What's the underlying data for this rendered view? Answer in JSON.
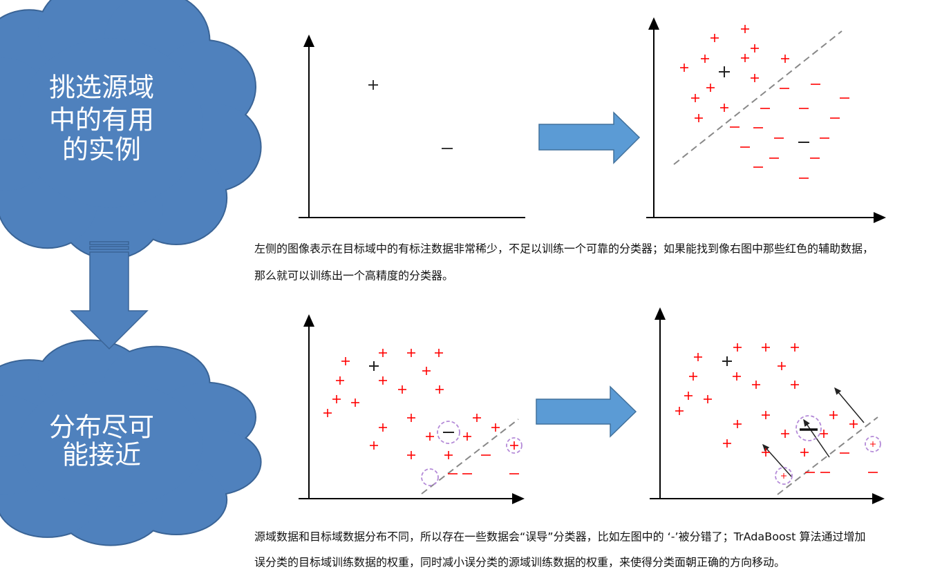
{
  "clouds": [
    {
      "lines": [
        "挑选源域",
        "中的有用",
        "的实例"
      ]
    },
    {
      "lines": [
        "分布尽可",
        "能接近"
      ]
    }
  ],
  "captions": [
    {
      "lines": [
        "左侧的图像表示在目标域中的有标注数据非常稀少，不足以训练一个可靠的分类器；如果能找到像右图中那些红色的辅助数据，",
        "那么就可以训练出一个高精度的分类器。"
      ]
    },
    {
      "lines": [
        "源域数据和目标域数据分布不同，所以存在一些数据会“误导”分类器，比如左图中的 ‘-’被分错了；TrAdaBoost 算法通过增加",
        "误分类的目标域训练数据的权重，同时减小误分类的源域训练数据的权重，来使得分类面朝正确的方向移动。"
      ]
    }
  ]
}
